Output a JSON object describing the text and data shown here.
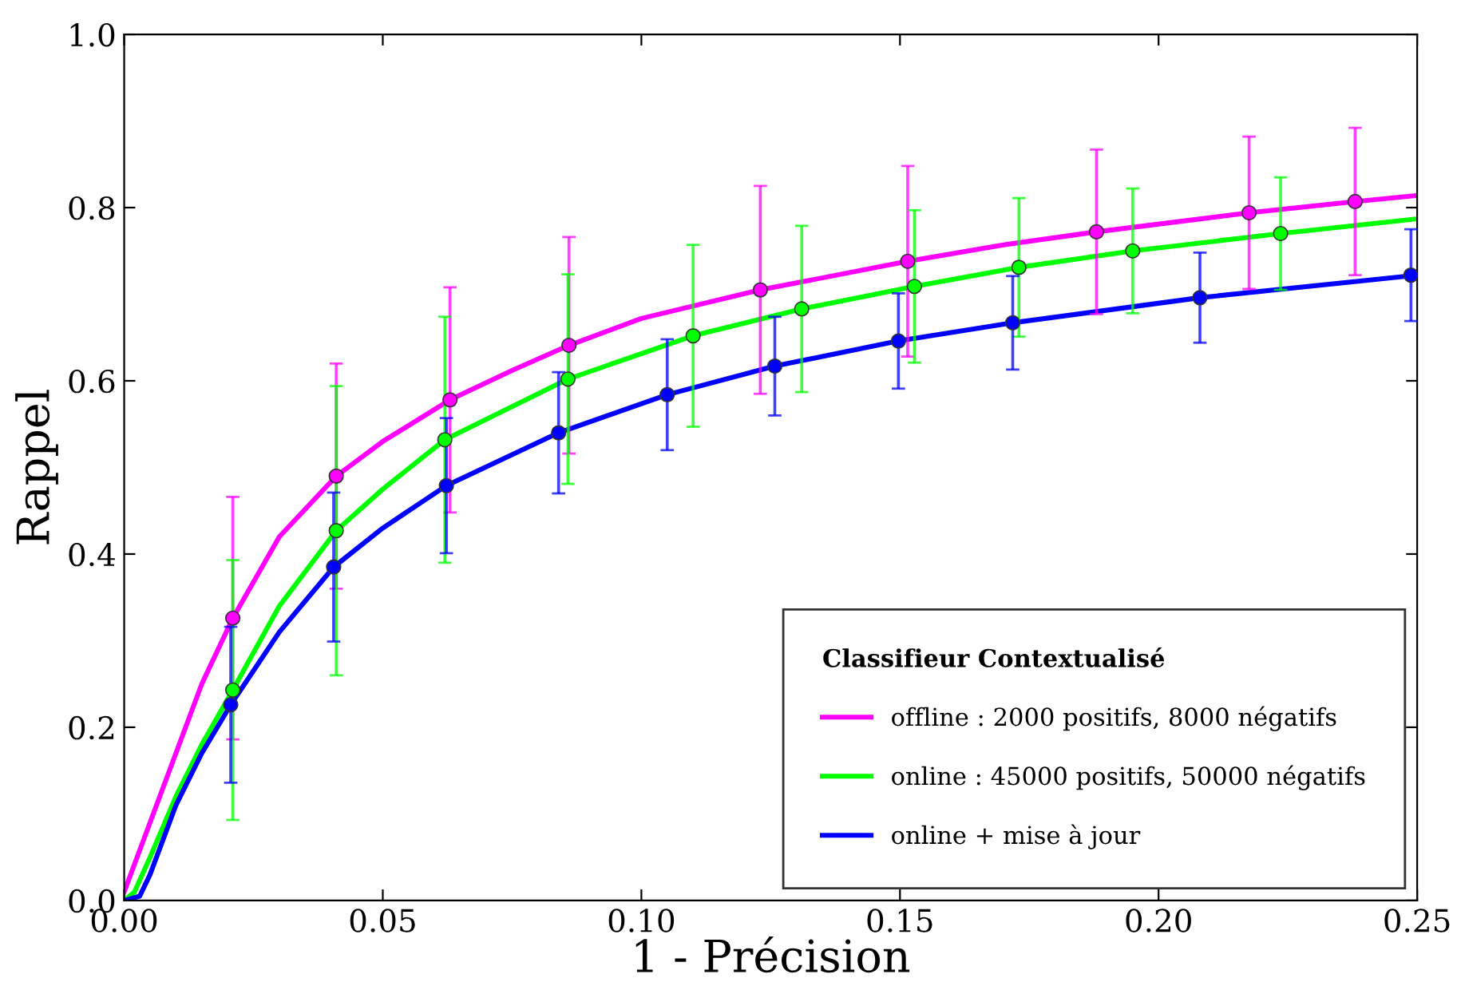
{
  "chart_data": {
    "type": "line",
    "xlabel": "1 - Précision",
    "ylabel": "Rappel",
    "legend_title": "Classifieur Contextualisé",
    "legend": "bottom right",
    "grid": false,
    "xlim": [
      0.0,
      0.25
    ],
    "xticks": [
      {
        "value": 0.0,
        "label": "0.00"
      },
      0.05,
      {
        "value": 0.1,
        "label": "0.10"
      },
      0.15,
      {
        "value": 0.2,
        "label": "0.20"
      },
      0.25
    ],
    "ylim": [
      0.0,
      1.0
    ],
    "yticks": [
      {
        "value": 0.0,
        "label": "0.0"
      },
      0.2,
      0.4,
      0.6,
      0.8,
      {
        "value": 1.0,
        "label": "1.0"
      }
    ],
    "series": [
      {
        "name": "offline : 2000 positifs, 8000 négatifs",
        "color": "#ff00ff",
        "marker": "none",
        "x": [
          0,
          0.005,
          0.01,
          0.015,
          0.021,
          0.03,
          0.041,
          0.05,
          0.063,
          0.075,
          0.086,
          0.1,
          0.123,
          0.1515,
          0.17,
          0.188,
          0.2175,
          0.238,
          0.25
        ],
        "values": [
          0.01,
          0.09,
          0.17,
          0.25,
          0.326,
          0.42,
          0.49,
          0.53,
          0.578,
          0.612,
          0.641,
          0.672,
          0.705,
          0.738,
          0.757,
          0.772,
          0.794,
          0.807,
          0.814
        ]
      },
      {
        "name": "online : 45000 positifs, 50000 négatifs",
        "color": "#00ff00",
        "marker": "none",
        "x": [
          0,
          0.002,
          0.005,
          0.01,
          0.015,
          0.021,
          0.03,
          0.041,
          0.05,
          0.062,
          0.0858,
          0.11,
          0.131,
          0.1528,
          0.173,
          0.195,
          0.2236,
          0.25
        ],
        "values": [
          0,
          0.01,
          0.05,
          0.12,
          0.18,
          0.243,
          0.34,
          0.427,
          0.475,
          0.532,
          0.602,
          0.652,
          0.683,
          0.709,
          0.731,
          0.75,
          0.77,
          0.787
        ]
      },
      {
        "name": "online + mise à jour",
        "color": "#0000ff",
        "marker": "none",
        "x": [
          0,
          0.003,
          0.005,
          0.01,
          0.015,
          0.0206,
          0.03,
          0.0405,
          0.05,
          0.0623,
          0.084,
          0.105,
          0.1258,
          0.1497,
          0.1718,
          0.208,
          0.25
        ],
        "values": [
          0,
          0.005,
          0.03,
          0.11,
          0.17,
          0.226,
          0.31,
          0.385,
          0.43,
          0.479,
          0.54,
          0.584,
          0.617,
          0.646,
          0.667,
          0.696,
          0.722
        ]
      },
      {
        "type": "scatter",
        "color": "#ff00ff",
        "marker": "circle",
        "x": [
          0.021,
          0.041,
          0.063,
          0.086,
          0.123,
          0.1515,
          0.188,
          0.2175,
          0.238
        ],
        "values": [
          0.326,
          0.49,
          0.578,
          0.641,
          0.705,
          0.738,
          0.772,
          0.794,
          0.807
        ],
        "errors": [
          0.14,
          0.13,
          0.13,
          0.125,
          0.12,
          0.11,
          0.095,
          0.088,
          0.085
        ]
      },
      {
        "type": "scatter",
        "color": "#00ff00",
        "marker": "circle",
        "x": [
          0.021,
          0.041,
          0.062,
          0.0858,
          0.11,
          0.131,
          0.1528,
          0.173,
          0.195,
          0.2236
        ],
        "values": [
          0.243,
          0.427,
          0.532,
          0.602,
          0.652,
          0.683,
          0.709,
          0.731,
          0.75,
          0.77
        ],
        "errors": [
          0.15,
          0.167,
          0.142,
          0.121,
          0.105,
          0.096,
          0.088,
          0.08,
          0.072,
          0.065
        ]
      },
      {
        "type": "scatter",
        "color": "#0000ff",
        "marker": "circle",
        "x": [
          0.0206,
          0.0405,
          0.0623,
          0.084,
          0.105,
          0.1258,
          0.1497,
          0.1718,
          0.208,
          0.2488
        ],
        "values": [
          0.226,
          0.385,
          0.479,
          0.54,
          0.584,
          0.617,
          0.646,
          0.667,
          0.696,
          0.722
        ],
        "errors": [
          0.09,
          0.086,
          0.078,
          0.07,
          0.064,
          0.057,
          0.055,
          0.054,
          0.052,
          0.053
        ]
      }
    ]
  }
}
